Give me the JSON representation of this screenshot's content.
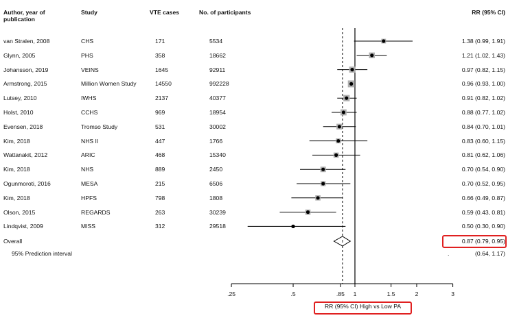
{
  "header": {
    "col_author": "Author, year of publication",
    "col_study": "Study",
    "col_vte": "VTE cases",
    "col_participants": "No. of participants",
    "col_rr": "RR (95% CI)"
  },
  "overall_label": "Overall",
  "overall_ci_text": "0.87 (0.79, 0.95)",
  "pi_label": "95% Prediction interval",
  "pi_dot": ".",
  "pi_ci_text": "(0.64, 1.17)",
  "chart_data": {
    "type": "forest",
    "title": "",
    "xlabel": "RR (95% CI) High vs Low PA",
    "x_scale": "log",
    "xlim": [
      0.25,
      3
    ],
    "x_ticks": [
      {
        "value": 0.25,
        "label": ".25"
      },
      {
        "value": 0.5,
        "label": ".5"
      },
      {
        "value": 0.85,
        "label": ".85"
      },
      {
        "value": 1,
        "label": "1"
      },
      {
        "value": 1.5,
        "label": "1.5"
      },
      {
        "value": 2,
        "label": "2"
      },
      {
        "value": 3,
        "label": "3"
      }
    ],
    "null_line": 1,
    "overall_line": 0.87,
    "studies": [
      {
        "author": "van Stralen, 2008",
        "study": "CHS",
        "vte_cases": "171",
        "participants": "5534",
        "rr": 1.38,
        "lo": 0.99,
        "hi": 1.91,
        "ci_text": "1.38 (0.99, 1.91)",
        "weight": 0.35
      },
      {
        "author": "Glynn, 2005",
        "study": "PHS",
        "vte_cases": "358",
        "participants": "18662",
        "rr": 1.21,
        "lo": 1.02,
        "hi": 1.43,
        "ci_text": "1.21 (1.02, 1.43)",
        "weight": 0.55
      },
      {
        "author": "Johansson, 2019",
        "study": "VEINS",
        "vte_cases": "1645",
        "participants": "92911",
        "rr": 0.97,
        "lo": 0.82,
        "hi": 1.15,
        "ci_text": "0.97 (0.82, 1.15)",
        "weight": 0.6
      },
      {
        "author": "Armstrong, 2015",
        "study": "Million Women Study",
        "vte_cases": "14550",
        "participants": "992228",
        "rr": 0.96,
        "lo": 0.93,
        "hi": 1.0,
        "ci_text": "0.96 (0.93, 1.00)",
        "weight": 0.75
      },
      {
        "author": "Lutsey, 2010",
        "study": "IWHS",
        "vte_cases": "2137",
        "participants": "40377",
        "rr": 0.91,
        "lo": 0.82,
        "hi": 1.02,
        "ci_text": "0.91 (0.82, 1.02)",
        "weight": 0.65
      },
      {
        "author": "Holst, 2010",
        "study": "CCHS",
        "vte_cases": "969",
        "participants": "18954",
        "rr": 0.88,
        "lo": 0.77,
        "hi": 1.02,
        "ci_text": "0.88 (0.77, 1.02)",
        "weight": 0.6
      },
      {
        "author": "Evensen, 2018",
        "study": "Tromso Study",
        "vte_cases": "531",
        "participants": "30002",
        "rr": 0.84,
        "lo": 0.7,
        "hi": 1.01,
        "ci_text": "0.84 (0.70, 1.01)",
        "weight": 0.55
      },
      {
        "author": "Kim, 2018",
        "study": "NHS II",
        "vte_cases": "447",
        "participants": "1766",
        "rr": 0.83,
        "lo": 0.6,
        "hi": 1.15,
        "ci_text": "0.83 (0.60, 1.15)",
        "weight": 0.4
      },
      {
        "author": "Wattanakit, 2012",
        "study": "ARIC",
        "vte_cases": "468",
        "participants": "15340",
        "rr": 0.81,
        "lo": 0.62,
        "hi": 1.06,
        "ci_text": "0.81 (0.62, 1.06)",
        "weight": 0.45
      },
      {
        "author": "Kim, 2018",
        "study": "NHS",
        "vte_cases": "889",
        "participants": "2450",
        "rr": 0.7,
        "lo": 0.54,
        "hi": 0.9,
        "ci_text": "0.70 (0.54, 0.90)",
        "weight": 0.5
      },
      {
        "author": "Ogunmoroti, 2016",
        "study": "MESA",
        "vte_cases": "215",
        "participants": "6506",
        "rr": 0.7,
        "lo": 0.52,
        "hi": 0.95,
        "ci_text": "0.70 (0.52, 0.95)",
        "weight": 0.4
      },
      {
        "author": "Kim, 2018",
        "study": "HPFS",
        "vte_cases": "798",
        "participants": "1808",
        "rr": 0.66,
        "lo": 0.49,
        "hi": 0.87,
        "ci_text": "0.66 (0.49, 0.87)",
        "weight": 0.45
      },
      {
        "author": "Olson, 2015",
        "study": "REGARDS",
        "vte_cases": "263",
        "participants": "30239",
        "rr": 0.59,
        "lo": 0.43,
        "hi": 0.81,
        "ci_text": "0.59 (0.43, 0.81)",
        "weight": 0.45
      },
      {
        "author": "Lindqvist, 2009",
        "study": "MISS",
        "vte_cases": "312",
        "participants": "29518",
        "rr": 0.5,
        "lo": 0.3,
        "hi": 0.9,
        "ci_text": "0.50 (0.30, 0.90)",
        "weight": 0.1
      }
    ],
    "overall": {
      "rr": 0.87,
      "lo": 0.79,
      "hi": 0.95
    },
    "prediction_interval": {
      "lo": 0.64,
      "hi": 1.17
    },
    "highlight_color": "#e02020"
  }
}
